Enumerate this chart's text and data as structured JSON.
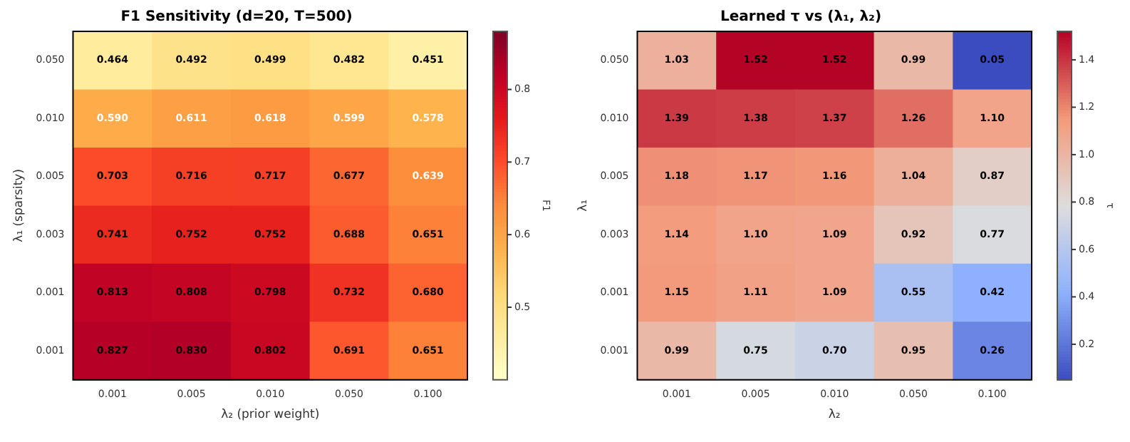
{
  "chart_data": [
    {
      "type": "heatmap",
      "title": "F1 Sensitivity (d=20, T=500)",
      "xlabel": "λ₂ (prior weight)",
      "ylabel": "λ₁ (sparsity)",
      "clabel": "F1",
      "categories": [
        "0.001",
        "0.005",
        "0.010",
        "0.050",
        "0.100"
      ],
      "y_categories": [
        "0.050",
        "0.010",
        "0.005",
        "0.003",
        "0.001",
        "0.001"
      ],
      "cells": [
        [
          0.464,
          0.492,
          0.499,
          0.482,
          0.451
        ],
        [
          0.59,
          0.611,
          0.618,
          0.599,
          0.578
        ],
        [
          0.703,
          0.716,
          0.717,
          0.677,
          0.639
        ],
        [
          0.741,
          0.752,
          0.752,
          0.688,
          0.651
        ],
        [
          0.813,
          0.808,
          0.798,
          0.732,
          0.68
        ],
        [
          0.827,
          0.83,
          0.802,
          0.691,
          0.651
        ]
      ],
      "cell_labels": [
        [
          "0.464",
          "0.492",
          "0.499",
          "0.482",
          "0.451"
        ],
        [
          "0.590",
          "0.611",
          "0.618",
          "0.599",
          "0.578"
        ],
        [
          "0.703",
          "0.716",
          "0.717",
          "0.677",
          "0.639"
        ],
        [
          "0.741",
          "0.752",
          "0.752",
          "0.688",
          "0.651"
        ],
        [
          "0.813",
          "0.808",
          "0.798",
          "0.732",
          "0.680"
        ],
        [
          "0.827",
          "0.830",
          "0.802",
          "0.691",
          "0.651"
        ]
      ],
      "clim": [
        0.4,
        0.88
      ],
      "cticks": [
        0.5,
        0.6,
        0.7,
        0.8
      ]
    },
    {
      "type": "heatmap",
      "title": "Learned τ vs (λ₁, λ₂)",
      "xlabel": "λ₂",
      "ylabel": "λ₁",
      "clabel": "τ",
      "categories": [
        "0.001",
        "0.005",
        "0.010",
        "0.050",
        "0.100"
      ],
      "y_categories": [
        "0.050",
        "0.010",
        "0.005",
        "0.003",
        "0.001",
        "0.001"
      ],
      "cells": [
        [
          1.03,
          1.52,
          1.52,
          0.99,
          0.05
        ],
        [
          1.39,
          1.38,
          1.37,
          1.26,
          1.1
        ],
        [
          1.18,
          1.17,
          1.16,
          1.04,
          0.87
        ],
        [
          1.14,
          1.1,
          1.09,
          0.92,
          0.77
        ],
        [
          1.15,
          1.11,
          1.09,
          0.55,
          0.42
        ],
        [
          0.99,
          0.75,
          0.7,
          0.95,
          0.26
        ]
      ],
      "cell_labels": [
        [
          "1.03",
          "1.52",
          "1.52",
          "0.99",
          "0.05"
        ],
        [
          "1.39",
          "1.38",
          "1.37",
          "1.26",
          "1.10"
        ],
        [
          "1.18",
          "1.17",
          "1.16",
          "1.04",
          "0.87"
        ],
        [
          "1.14",
          "1.10",
          "1.09",
          "0.92",
          "0.77"
        ],
        [
          "1.15",
          "1.11",
          "1.09",
          "0.55",
          "0.42"
        ],
        [
          "0.99",
          "0.75",
          "0.70",
          "0.95",
          "0.26"
        ]
      ],
      "clim": [
        0.05,
        1.52
      ],
      "cticks": [
        0.2,
        0.4,
        0.6,
        0.8,
        {
          "value": 1.0,
          "label": "1.0"
        },
        1.2,
        1.4
      ]
    }
  ]
}
